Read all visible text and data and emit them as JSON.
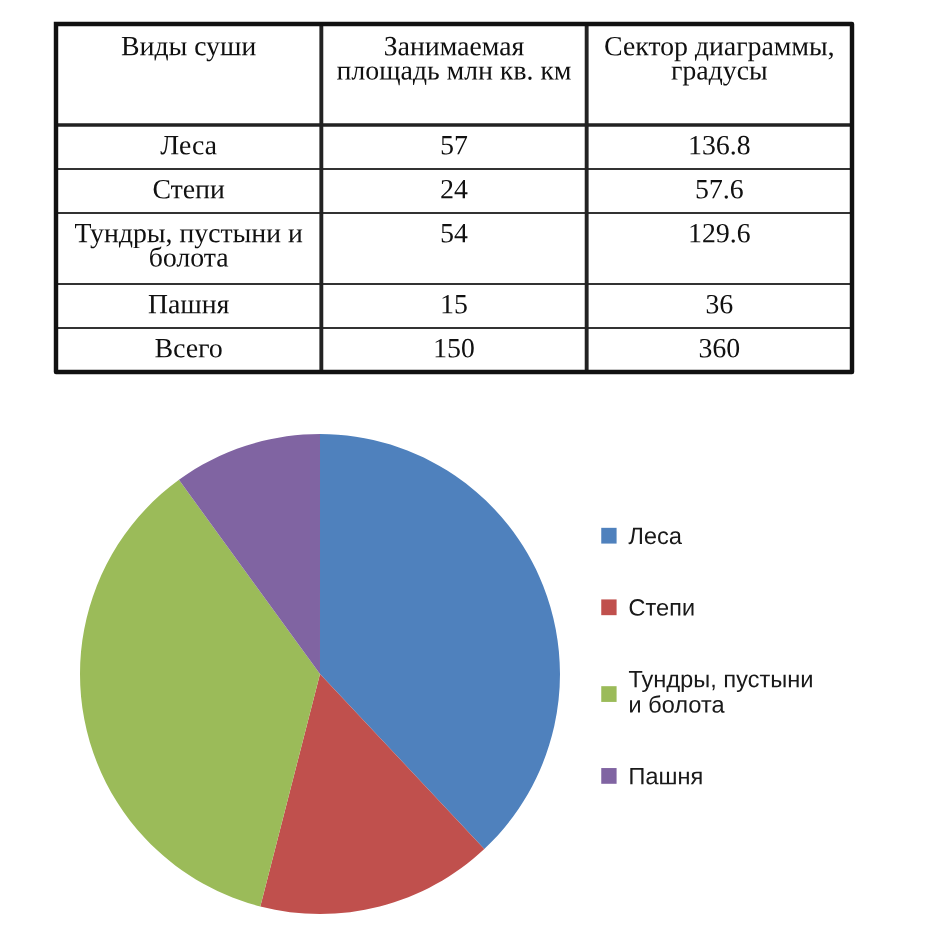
{
  "chart_data": [
    {
      "type": "other",
      "categories": [
        "Виды суши",
        "Занимаемая площадь млн кв. км",
        "Сектор диаграммы, градусы"
      ],
      "y_categories": [
        "Леса",
        "Степи",
        "Тундры, пустыни и болота",
        "Пашня",
        "Всего"
      ],
      "cell_labels": [
        [
          "57",
          "136.8"
        ],
        [
          "24",
          "57.6"
        ],
        [
          "54",
          "129.6"
        ],
        [
          "15",
          "36"
        ],
        [
          "150",
          "360"
        ]
      ]
    },
    {
      "type": "pie",
      "categories": [
        "Леса",
        "Степи",
        "Тундры, пустыни и болота",
        "Пашня"
      ],
      "values": [
        38,
        16,
        36,
        10
      ],
      "colors": [
        "#4f81bd",
        "#c0504d",
        "#9bbb59",
        "#8064a2"
      ],
      "legend": "right"
    }
  ]
}
